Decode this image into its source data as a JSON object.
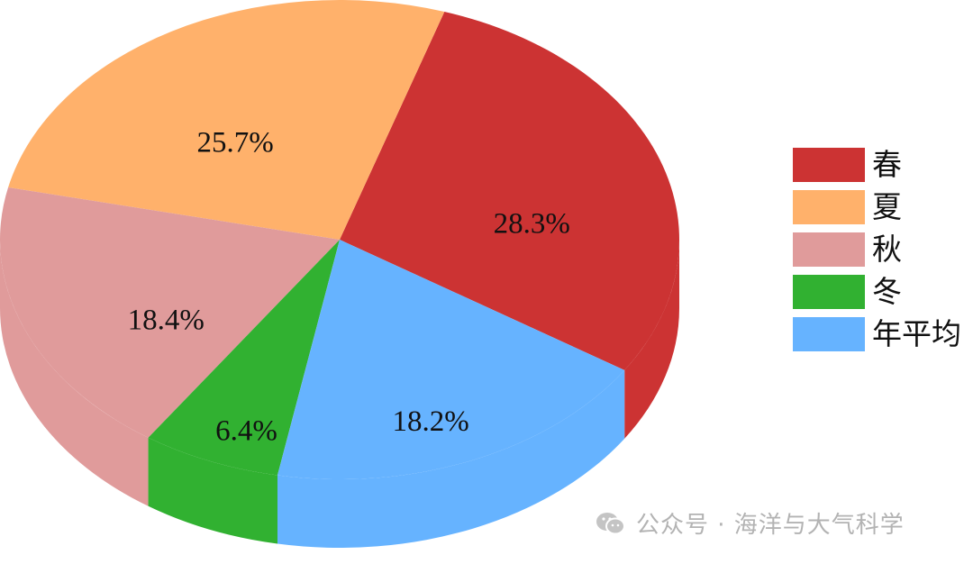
{
  "chart_data": {
    "type": "pie",
    "slices": [
      {
        "label": "春",
        "value": 28.3,
        "display": "28.3%",
        "color": "#cc3333"
      },
      {
        "label": "夏",
        "value": 25.7,
        "display": "25.7%",
        "color": "#ffb16b"
      },
      {
        "label": "秋",
        "value": 18.4,
        "display": "18.4%",
        "color": "#e09b9b"
      },
      {
        "label": "冬",
        "value": 6.4,
        "display": "6.4%",
        "color": "#31b131"
      },
      {
        "label": "年平均",
        "value": 18.2,
        "display": "18.2%",
        "color": "#66b3ff"
      }
    ],
    "legend_position": "right"
  },
  "watermark": {
    "text": "公众号 · 海洋与大气科学",
    "icon": "wechat-icon"
  }
}
